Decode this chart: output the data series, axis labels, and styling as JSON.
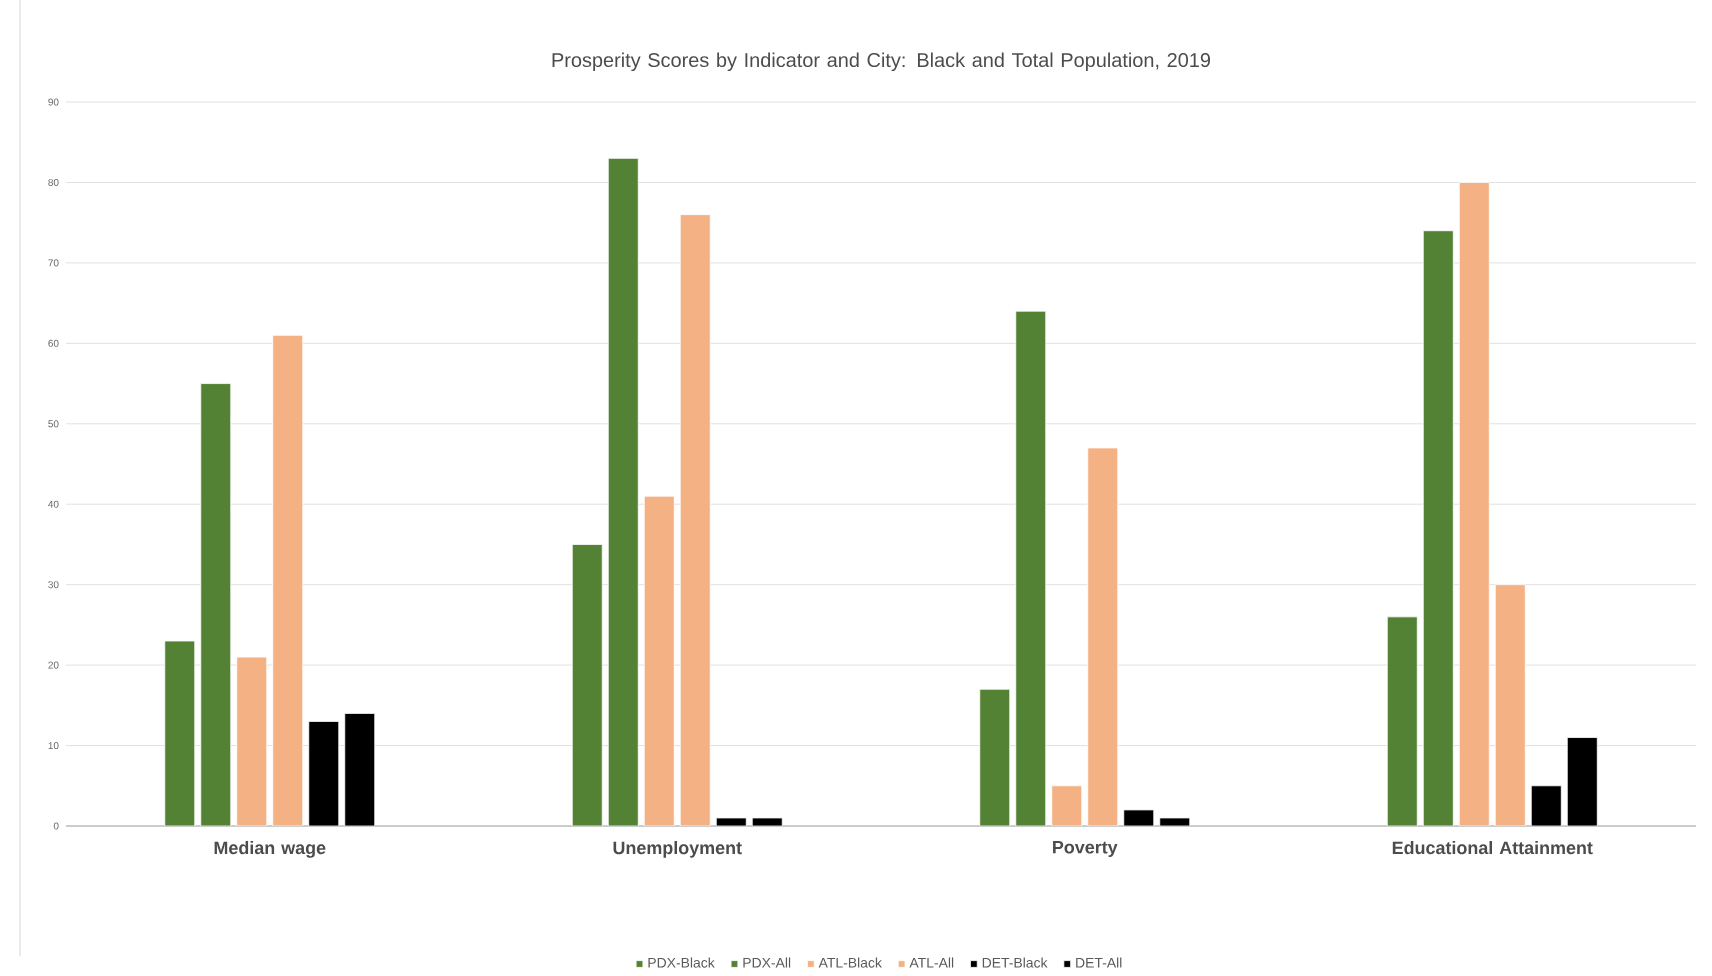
{
  "chart_data": {
    "type": "bar",
    "title": "Prosperity Scores by Indicator and City: Black and Total Population, 2019",
    "categories": [
      "Median wage",
      "Unemployment",
      "Poverty",
      "Educational Attainment"
    ],
    "series": [
      {
        "name": "PDX-Black",
        "color": "#548235",
        "values": [
          23,
          35,
          17,
          26
        ]
      },
      {
        "name": "PDX-All",
        "color": "#548235",
        "values": [
          55,
          83,
          64,
          74
        ]
      },
      {
        "name": "ATL-Black",
        "color": "#f4b183",
        "values": [
          21,
          41,
          5,
          80
        ]
      },
      {
        "name": "ATL-All",
        "color": "#f4b183",
        "values": [
          61,
          76,
          47,
          30
        ]
      },
      {
        "name": "DET-Black",
        "color": "#000000",
        "values": [
          13,
          1,
          2,
          5
        ]
      },
      {
        "name": "DET-All",
        "color": "#000000",
        "values": [
          14,
          1,
          1,
          11
        ]
      }
    ],
    "ylim": [
      0,
      90
    ],
    "yticks": [
      0,
      10,
      20,
      30,
      40,
      50,
      60,
      70,
      80,
      90
    ],
    "grid": "y",
    "legend": "bottom"
  }
}
